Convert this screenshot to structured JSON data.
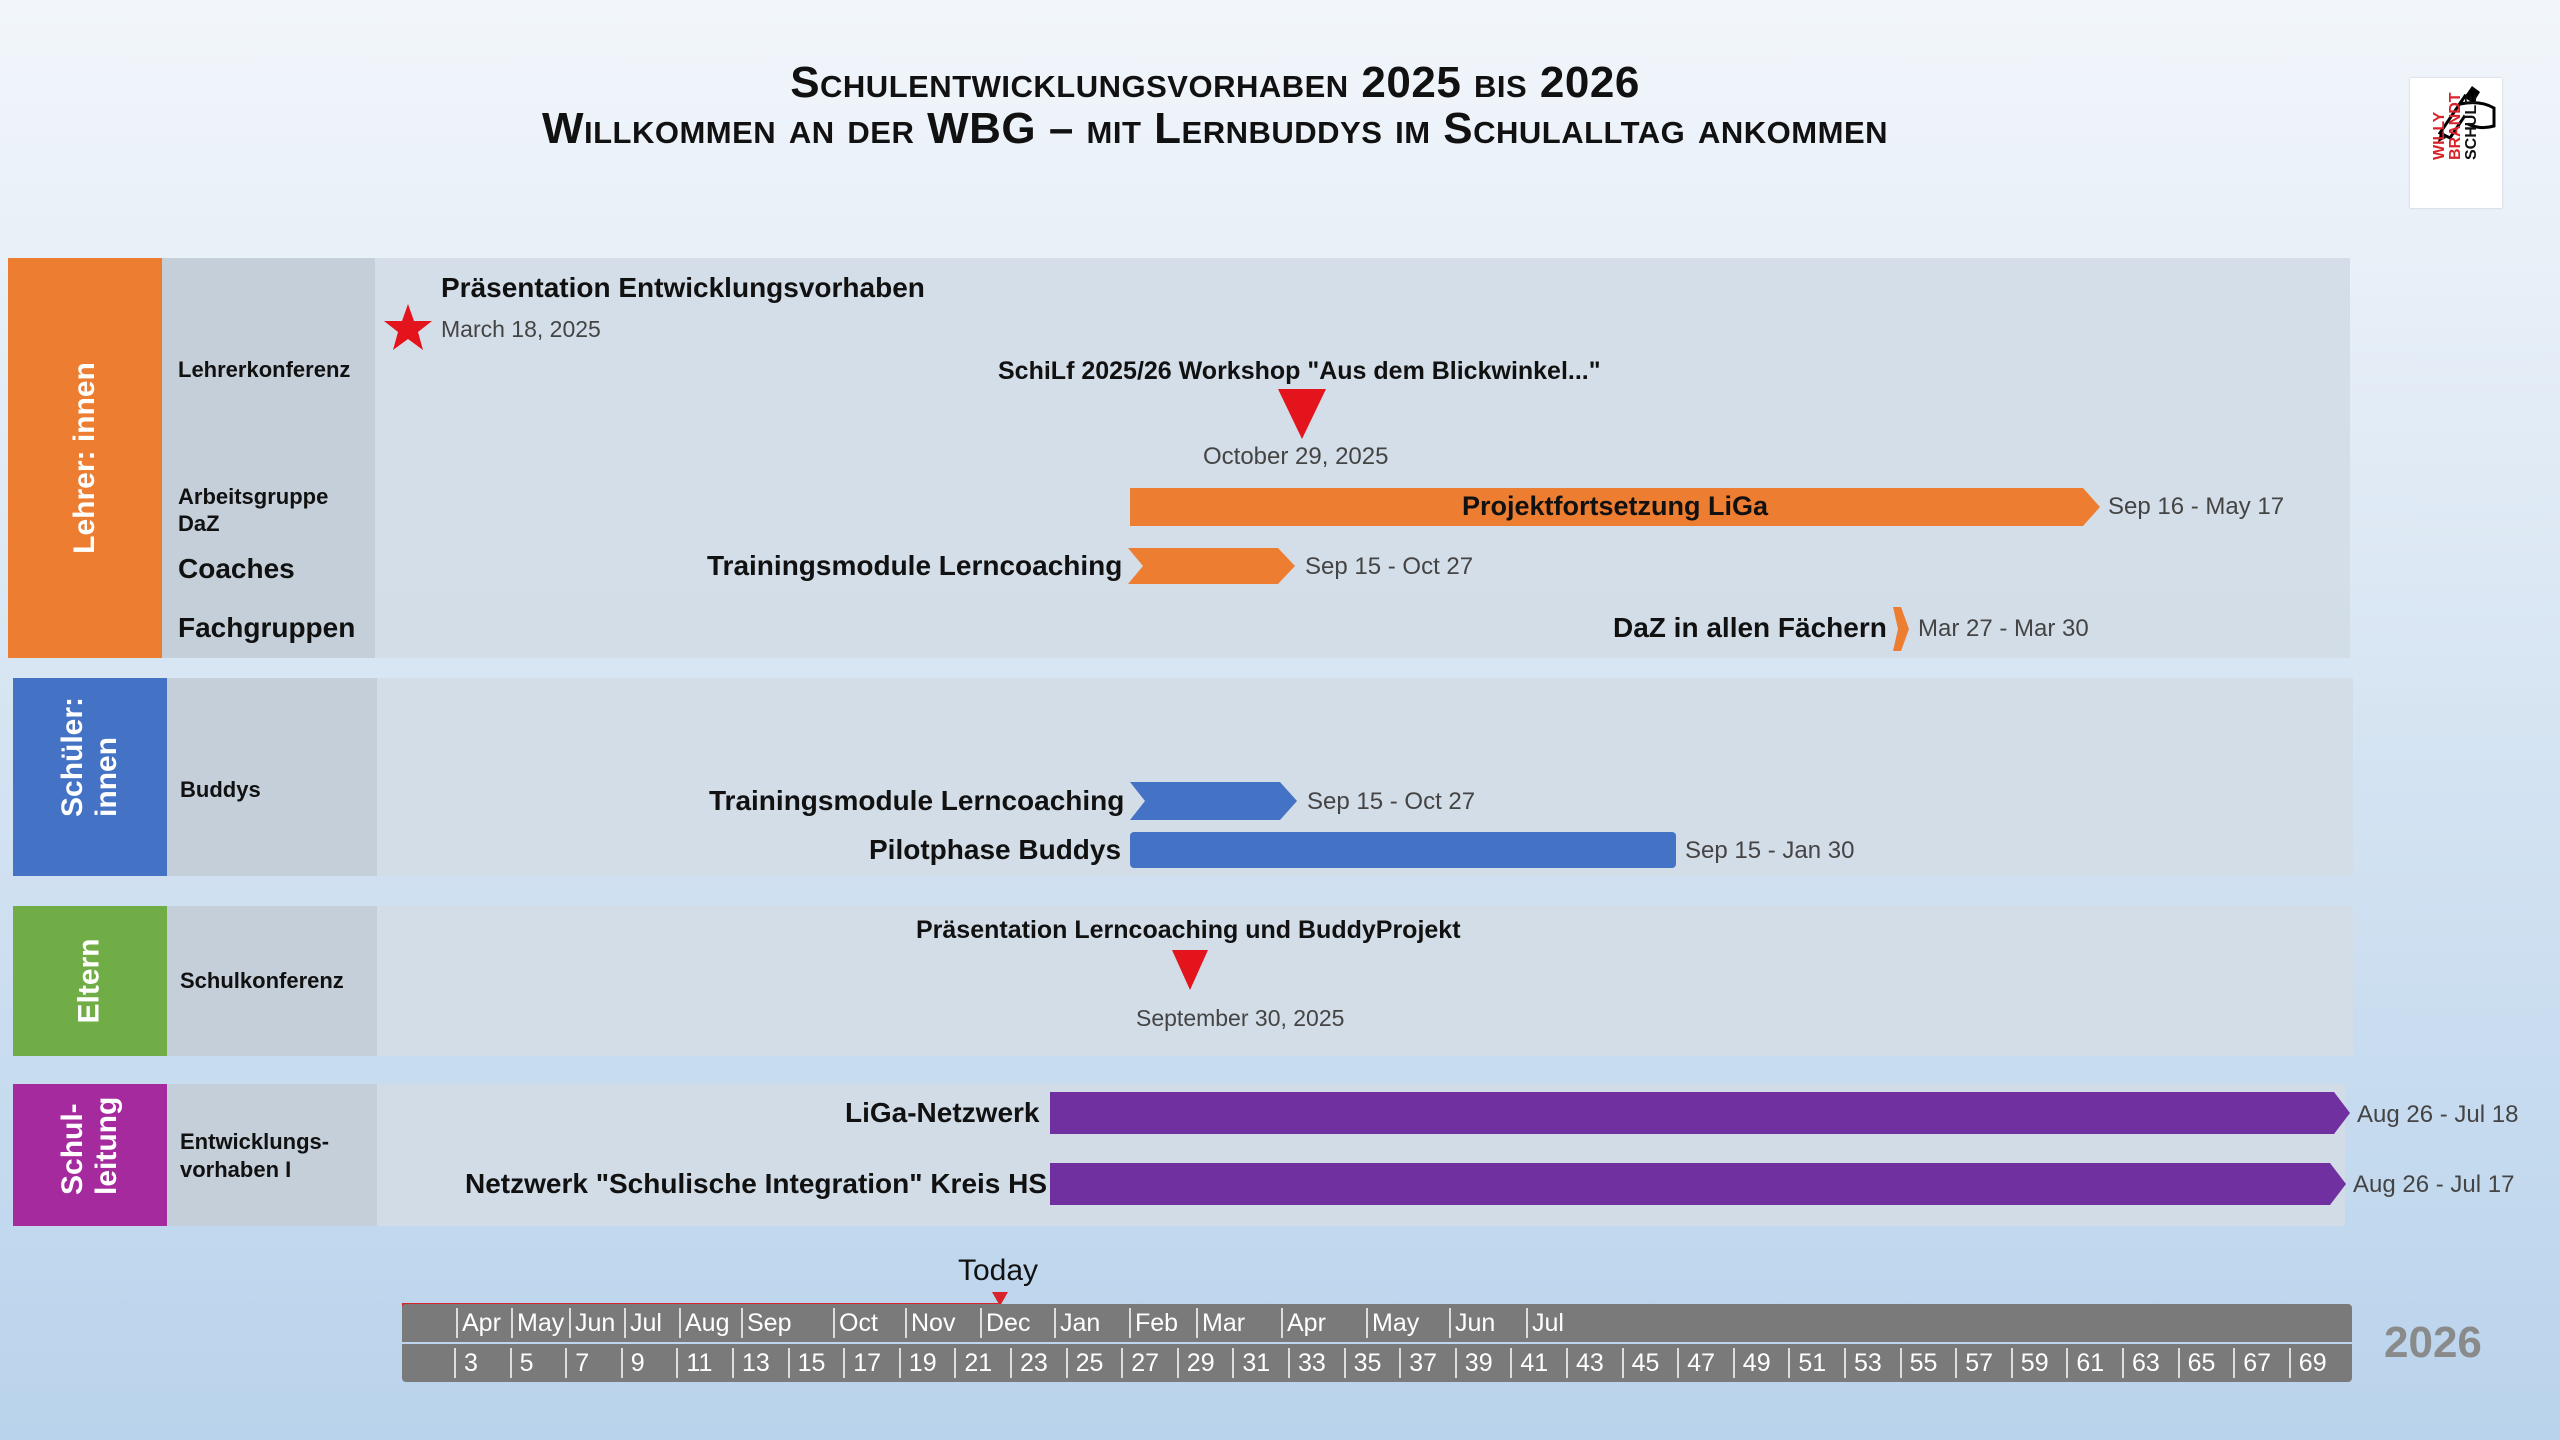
{
  "header": {
    "title_line1": "Schulentwicklungsvorhaben 2025 bis 2026",
    "title_line2": "Willkommen an der WBG – mit Lernbuddys im Schulalltag ankommen"
  },
  "logo": {
    "line1": "WILLY",
    "line2": "BRANDT",
    "line3": "SCHULE",
    "icon": "pen-hand-icon"
  },
  "colors": {
    "orange": "#ed7d31",
    "blue": "#4472c4",
    "green": "#70ad47",
    "purple": "#7030a0",
    "magenta": "#a52a9e",
    "red": "#e3141b",
    "axis": "#7a7a7a"
  },
  "groups": [
    {
      "label": "Lehrer: innen",
      "rows": [
        {
          "label": "Lehrerkonferenz",
          "milestones": [
            {
              "title": "Präsentation Entwicklungsvorhaben",
              "date": "March 18, 2025",
              "shape": "star-icon"
            },
            {
              "title": "SchiLf 2025/26 Workshop \"Aus dem Blickwinkel...\"",
              "date": "October 29, 2025",
              "shape": "triangle-down-icon"
            }
          ]
        },
        {
          "label": "Arbeitsgruppe DaZ",
          "tasks": [
            {
              "title": "Projektfortsetzung LiGa",
              "dates": "Sep 16 - May 17"
            }
          ]
        },
        {
          "label": "Coaches",
          "tasks": [
            {
              "title": "Trainingsmodule Lerncoaching",
              "dates": "Sep 15 - Oct 27"
            }
          ]
        },
        {
          "label": "Fachgruppen",
          "tasks": [
            {
              "title": "DaZ in allen Fächern",
              "dates": "Mar 27 - Mar 30"
            }
          ]
        }
      ]
    },
    {
      "label": "Schüler: innen",
      "rows": [
        {
          "label": "Buddys",
          "tasks": [
            {
              "title": "Trainingsmodule Lerncoaching",
              "dates": "Sep 15 - Oct 27"
            },
            {
              "title": "Pilotphase Buddys",
              "dates": "Sep 15 - Jan 30"
            }
          ]
        }
      ]
    },
    {
      "label": "Eltern",
      "rows": [
        {
          "label": "Schulkonferenz",
          "milestones": [
            {
              "title": "Präsentation Lerncoaching und BuddyProjekt",
              "date": "September 30, 2025",
              "shape": "triangle-down-icon"
            }
          ]
        }
      ]
    },
    {
      "label": "Schul- leitung",
      "rows": [
        {
          "label": "Entwicklungs- vorhaben I",
          "tasks": [
            {
              "title": "LiGa-Netzwerk",
              "dates": "Aug 26 - Jul 18"
            },
            {
              "title": "Netzwerk \"Schulische Integration\" Kreis HS",
              "dates": "Aug 26 - Jul 17"
            }
          ]
        }
      ]
    }
  ],
  "timeline": {
    "today_label": "Today",
    "year_label": "2026",
    "months": [
      "Apr",
      "May",
      "Jun",
      "Jul",
      "Aug",
      "Sep",
      "Oct",
      "Nov",
      "Dec",
      "Jan",
      "Feb",
      "Mar",
      "Apr",
      "May",
      "Jun",
      "Jul"
    ],
    "weeks": [
      "3",
      "5",
      "7",
      "9",
      "11",
      "13",
      "15",
      "17",
      "19",
      "21",
      "23",
      "25",
      "27",
      "29",
      "31",
      "33",
      "35",
      "37",
      "39",
      "41",
      "43",
      "45",
      "47",
      "49",
      "51",
      "53",
      "55",
      "57",
      "59",
      "61",
      "63",
      "65",
      "67",
      "69"
    ]
  }
}
